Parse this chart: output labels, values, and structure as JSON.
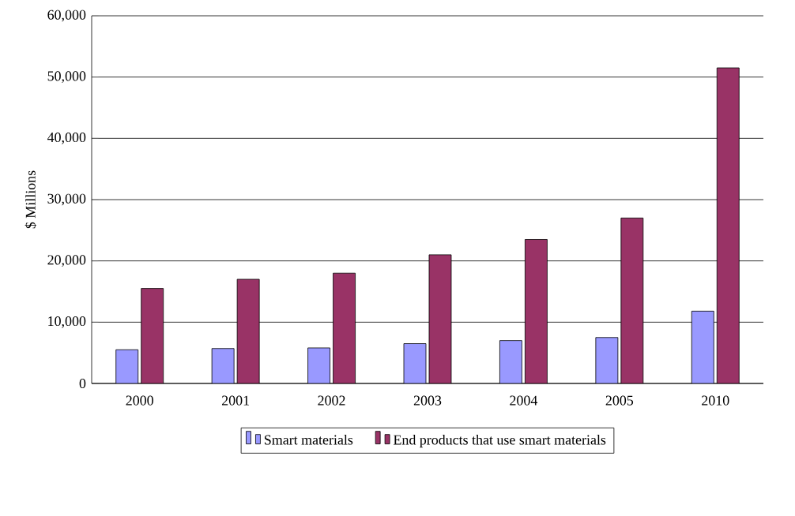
{
  "chart_data": {
    "type": "bar",
    "ylabel": "$ Millions",
    "categories": [
      "2000",
      "2001",
      "2002",
      "2003",
      "2004",
      "2005",
      "2010"
    ],
    "series": [
      {
        "name": "Smart materials",
        "color": "#9999ff",
        "values": [
          5500,
          5700,
          5800,
          6500,
          7000,
          7500,
          11800
        ]
      },
      {
        "name": "End products that use smart materials",
        "color": "#993366",
        "values": [
          15500,
          17000,
          18000,
          21000,
          23500,
          27000,
          51500
        ]
      }
    ],
    "ylim": [
      0,
      60000
    ],
    "yticks": [
      0,
      {
        "value": 10000,
        "label": "10,000"
      },
      {
        "value": 20000,
        "label": "20,000"
      },
      {
        "value": 30000,
        "label": "30,000"
      },
      {
        "value": 40000,
        "label": "40,000"
      },
      {
        "value": 50000,
        "label": "50,000"
      },
      {
        "value": 60000,
        "label": "60,000"
      }
    ],
    "grid": "y",
    "legend": "bottom"
  }
}
